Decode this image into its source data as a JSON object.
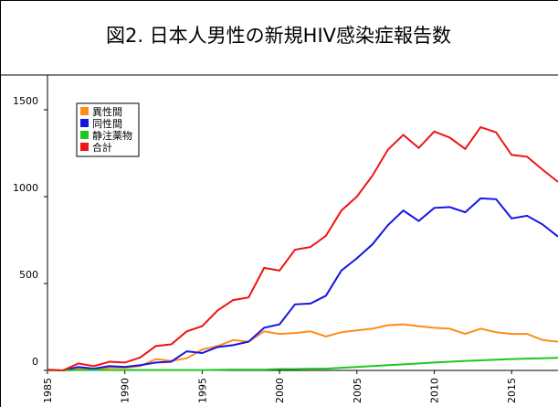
{
  "chart_data": {
    "type": "line",
    "title": "図2. 日本人男性の新規HIV感染症報告数",
    "x": [
      1985,
      1986,
      1987,
      1988,
      1989,
      1990,
      1991,
      1992,
      1993,
      1994,
      1995,
      1996,
      1997,
      1998,
      1999,
      2000,
      2001,
      2002,
      2003,
      2004,
      2005,
      2006,
      2007,
      2008,
      2009,
      2010,
      2011,
      2012,
      2013,
      2014,
      2015,
      2016,
      2017,
      2018
    ],
    "series": [
      {
        "name": "異性間",
        "color": "#ff8c1a",
        "values": [
          0,
          0,
          10,
          5,
          15,
          15,
          25,
          65,
          55,
          70,
          120,
          140,
          175,
          165,
          225,
          210,
          215,
          225,
          195,
          220,
          230,
          240,
          260,
          265,
          255,
          245,
          240,
          210,
          240,
          220,
          210,
          210,
          175,
          165
        ]
      },
      {
        "name": "同性間",
        "color": "#1414e6",
        "values": [
          0,
          0,
          20,
          10,
          25,
          20,
          30,
          45,
          50,
          110,
          100,
          135,
          145,
          165,
          245,
          265,
          380,
          385,
          430,
          575,
          645,
          725,
          835,
          920,
          860,
          935,
          940,
          910,
          990,
          985,
          875,
          890,
          840,
          770
        ]
      },
      {
        "name": "静注薬物",
        "color": "#1ec81e",
        "values": [
          0,
          0,
          2,
          2,
          2,
          2,
          2,
          2,
          2,
          2,
          2,
          3,
          5,
          5,
          5,
          8,
          8,
          10,
          10,
          15,
          20,
          25,
          30,
          35,
          40,
          45,
          50,
          55,
          58,
          62,
          65,
          68,
          70,
          72
        ]
      },
      {
        "name": "合計",
        "color": "#f01414",
        "values": [
          5,
          0,
          40,
          25,
          50,
          45,
          75,
          140,
          150,
          225,
          255,
          345,
          405,
          420,
          590,
          575,
          695,
          710,
          775,
          920,
          1000,
          1120,
          1270,
          1355,
          1280,
          1375,
          1340,
          1275,
          1400,
          1370,
          1240,
          1230,
          1155,
          1085
        ]
      }
    ],
    "xlim": [
      1985,
      2018
    ],
    "xticks": [
      1985,
      1990,
      1995,
      2000,
      2005,
      2010,
      2015
    ],
    "ylim": [
      0,
      1700
    ],
    "yticks": [
      0,
      500,
      1000,
      1500
    ],
    "legend": "upper left"
  }
}
